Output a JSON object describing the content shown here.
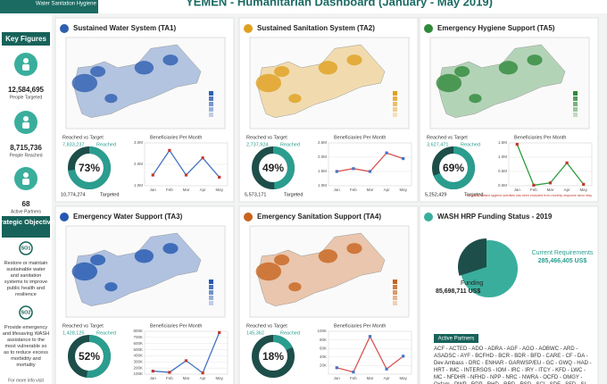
{
  "header": {
    "logo": "Water Sanitation Hygiene",
    "title": "YEMEN - Humanitarian Dashboard (January - May 2019)"
  },
  "sidebar": {
    "key_figures": "Key Figures",
    "figures": [
      {
        "value": "12,584,695",
        "label": "People Targeted"
      },
      {
        "value": "8,715,736",
        "label": "People Reached"
      },
      {
        "value": "68",
        "label": "Active Partners"
      }
    ],
    "objectives_title": "Strategic Objectives",
    "objectives": [
      {
        "code": "SO1",
        "text": "Restore or maintain sustainable water and sanitation systems to improve public health and resilience"
      },
      {
        "code": "SO2",
        "text": "Provide emergency and lifesaving WASH assistance to the most vulnerable so as to reduce excess morbidity and mortality"
      }
    ],
    "more_info": "For more info visit"
  },
  "panels": [
    {
      "title": "Sustained Water System (TA1)",
      "reached_vs_target": "Reached vs Target",
      "reached": "7,833,237",
      "reached_text": "Reached",
      "targeted": "10,774,274",
      "targeted_text": "Targeted",
      "map_color": "#2e5fb0",
      "donut_chart": {
        "type": "donut",
        "values": [
          73
        ],
        "value_labels": [
          "73%"
        ],
        "color": "#2a9d8f"
      },
      "line_chart": {
        "type": "line",
        "title": "Beneficiaries Per Month",
        "categories": [
          "Jan",
          "Feb",
          "Mar",
          "Apr",
          "May"
        ],
        "values": [
          1500000,
          2650000,
          1500000,
          2300000,
          1400000
        ],
        "line_color": "#4472c4",
        "marker_color": "#c0392b",
        "ylim": [
          1000000,
          3000000
        ],
        "yticks": [
          {
            "value": 1000000,
            "label": "1.0M"
          },
          {
            "value": 2000000,
            "label": "2.0M"
          },
          {
            "value": 3000000,
            "label": "3.0M"
          }
        ]
      }
    },
    {
      "title": "Sustained Sanitation System (TA2)",
      "reached_vs_target": "Reached vs Target",
      "reached": "2,737,924",
      "reached_text": "Reached",
      "targeted": "5,573,171",
      "targeted_text": "Targeted",
      "map_color": "#e0a020",
      "donut_chart": {
        "type": "donut",
        "values": [
          49
        ],
        "value_labels": [
          "49%"
        ],
        "color": "#2a9d8f"
      },
      "line_chart": {
        "type": "line",
        "title": "Beneficiaries Per Month",
        "categories": [
          "Jan",
          "Feb",
          "Mar",
          "Apr",
          "May"
        ],
        "values": [
          1500000,
          1600000,
          1500000,
          2150000,
          1950000
        ],
        "line_color": "#d9534f",
        "marker_color": "#4472c4",
        "ylim": [
          1000000,
          2500000
        ],
        "yticks": [
          {
            "value": 1000000,
            "label": "1.0M"
          },
          {
            "value": 1500000,
            "label": "1.5M"
          },
          {
            "value": 2000000,
            "label": "2.0M"
          },
          {
            "value": 2500000,
            "label": "2.5M"
          }
        ]
      }
    },
    {
      "title": "Emergency Hygiene Support (TA5)",
      "reached_vs_target": "Reached vs Target",
      "reached": "3,627,471",
      "reached_text": "Reached",
      "targeted": "5,252,429",
      "targeted_text": "Targeted",
      "map_color": "#2f8a3a",
      "donut_chart": {
        "type": "donut",
        "values": [
          69
        ],
        "value_labels": [
          "69%"
        ],
        "color": "#2a9d8f"
      },
      "line_chart": {
        "type": "line",
        "title": "Beneficiaries Per Month",
        "categories": [
          "Jan",
          "Feb",
          "Mar",
          "Apr",
          "May"
        ],
        "values": [
          1450000,
          20000,
          100000,
          800000,
          50000
        ],
        "line_color": "#2e9e3e",
        "marker_color": "#c0392b",
        "ylim": [
          0,
          1500000
        ],
        "yticks": [
          {
            "value": 0,
            "label": "0.0M"
          },
          {
            "value": 500000,
            "label": "0.5M"
          },
          {
            "value": 1000000,
            "label": "1.0M"
          },
          {
            "value": 1500000,
            "label": "1.5M"
          }
        ],
        "note": "* Cholera related hygiene activities has been excluded from monthly response since May"
      }
    },
    {
      "title": "Emergency Water Support (TA3)",
      "reached_vs_target": "Reached vs Target",
      "reached": "1,428,125",
      "reached_text": "Reached",
      "map_color": "#2458b0",
      "donut_chart": {
        "type": "donut",
        "values": [
          52
        ],
        "value_labels": [
          "52%"
        ],
        "color": "#2a9d8f"
      },
      "line_chart": {
        "type": "line",
        "title": "Beneficiaries Per Month",
        "categories": [
          "Jan",
          "Feb",
          "Mar",
          "Apr",
          "May"
        ],
        "values": [
          150000,
          130000,
          320000,
          120000,
          780000
        ],
        "line_color": "#4472c4",
        "marker_color": "#c0392b",
        "ylim": [
          100000,
          800000
        ],
        "yticks": [
          {
            "value": 100000,
            "label": "100K"
          },
          {
            "value": 200000,
            "label": "200K"
          },
          {
            "value": 300000,
            "label": "300K"
          },
          {
            "value": 400000,
            "label": "400K"
          },
          {
            "value": 500000,
            "label": "500K"
          },
          {
            "value": 600000,
            "label": "600K"
          },
          {
            "value": 700000,
            "label": "700K"
          },
          {
            "value": 800000,
            "label": "800K"
          }
        ]
      }
    },
    {
      "title": "Emergency Sanitation Support (TA4)",
      "reached_vs_target": "Reached vs Target",
      "reached": "145,362",
      "reached_text": "Reached",
      "map_color": "#c8641e",
      "donut_chart": {
        "type": "donut",
        "values": [
          18
        ],
        "value_labels": [
          "18%"
        ],
        "color": "#2a9d8f"
      },
      "line_chart": {
        "type": "line",
        "title": "Beneficiaries Per Month",
        "categories": [
          "Jan",
          "Feb",
          "Mar",
          "Apr",
          "May"
        ],
        "values": [
          15000,
          5000,
          88000,
          12000,
          42000
        ],
        "line_color": "#d9534f",
        "marker_color": "#4472c4",
        "ylim": [
          0,
          100000
        ],
        "yticks": [
          {
            "value": 20000,
            "label": "20K"
          },
          {
            "value": 40000,
            "label": "40K"
          },
          {
            "value": 60000,
            "label": "60K"
          },
          {
            "value": 80000,
            "label": "80K"
          },
          {
            "value": 100000,
            "label": "100K"
          }
        ]
      }
    }
  ],
  "funding": {
    "title": "WASH HRP Funding Status - 2019",
    "chart": {
      "type": "pie",
      "categories": [
        "Funding",
        "Current Requirements"
      ],
      "values": [
        85698711,
        285466405
      ],
      "value_labels": [
        "85,698,711 US$",
        "285,466,405 US$"
      ],
      "colors": [
        "#1d4e4a",
        "#3aae9c"
      ]
    },
    "partners_title": "Active Partners",
    "partners": "ACF - ACTED - ADO - ADRA - AGF - AGO - AOBWC - ARD - ASADSC - AYF - BCFHD - BCR - BDR - BFD - CARE - CF - DA - Dev Ambass - DRC - ENHAR - GARWSP/EU - GC - GWQ - HAD - HRT - IMC - INTERSOS - IOM - IRC - IRY - ITCY - KFD - LWC - MC - NFDHR - NFHD - NPP - NRC - NWRA - OCFD - OMGY - Oxfam - PWP - RDP - RHD - RRD - RSD - SCI - SDF - SFD - SI - SOUL - SYFD - TATWEER -"
  }
}
